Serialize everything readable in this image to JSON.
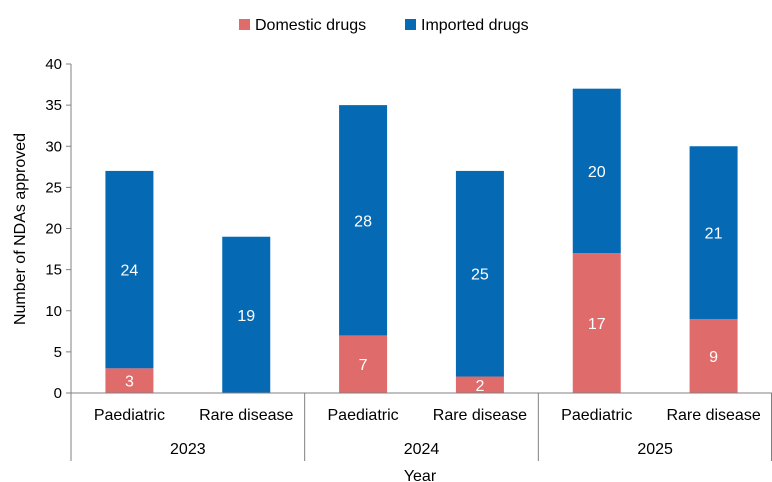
{
  "chart_data": {
    "type": "bar",
    "stacked": true,
    "title": "",
    "xlabel": "Year",
    "ylabel": "Number of NDAs approved",
    "ylim": [
      0,
      40
    ],
    "yticks": [
      0,
      5,
      10,
      15,
      20,
      25,
      30,
      35,
      40
    ],
    "legend": {
      "position": "top",
      "entries": [
        "Domestic drugs",
        "Imported drugs"
      ]
    },
    "groups": [
      "2023",
      "2024",
      "2025"
    ],
    "categories": [
      "Paediatric",
      "Rare disease",
      "Paediatric",
      "Rare disease",
      "Paediatric",
      "Rare disease"
    ],
    "category_group": [
      "2023",
      "2023",
      "2024",
      "2024",
      "2025",
      "2025"
    ],
    "series": [
      {
        "name": "Domestic drugs",
        "color": "#e06b6b",
        "values": [
          3,
          0,
          7,
          2,
          17,
          9
        ]
      },
      {
        "name": "Imported drugs",
        "color": "#0569b3",
        "values": [
          24,
          19,
          28,
          25,
          20,
          21
        ]
      }
    ],
    "data_labels": [
      [
        "3",
        "",
        "7",
        "2",
        "17",
        "9"
      ],
      [
        "24",
        "19",
        "28",
        "25",
        "20",
        "21"
      ]
    ],
    "grid": false
  }
}
